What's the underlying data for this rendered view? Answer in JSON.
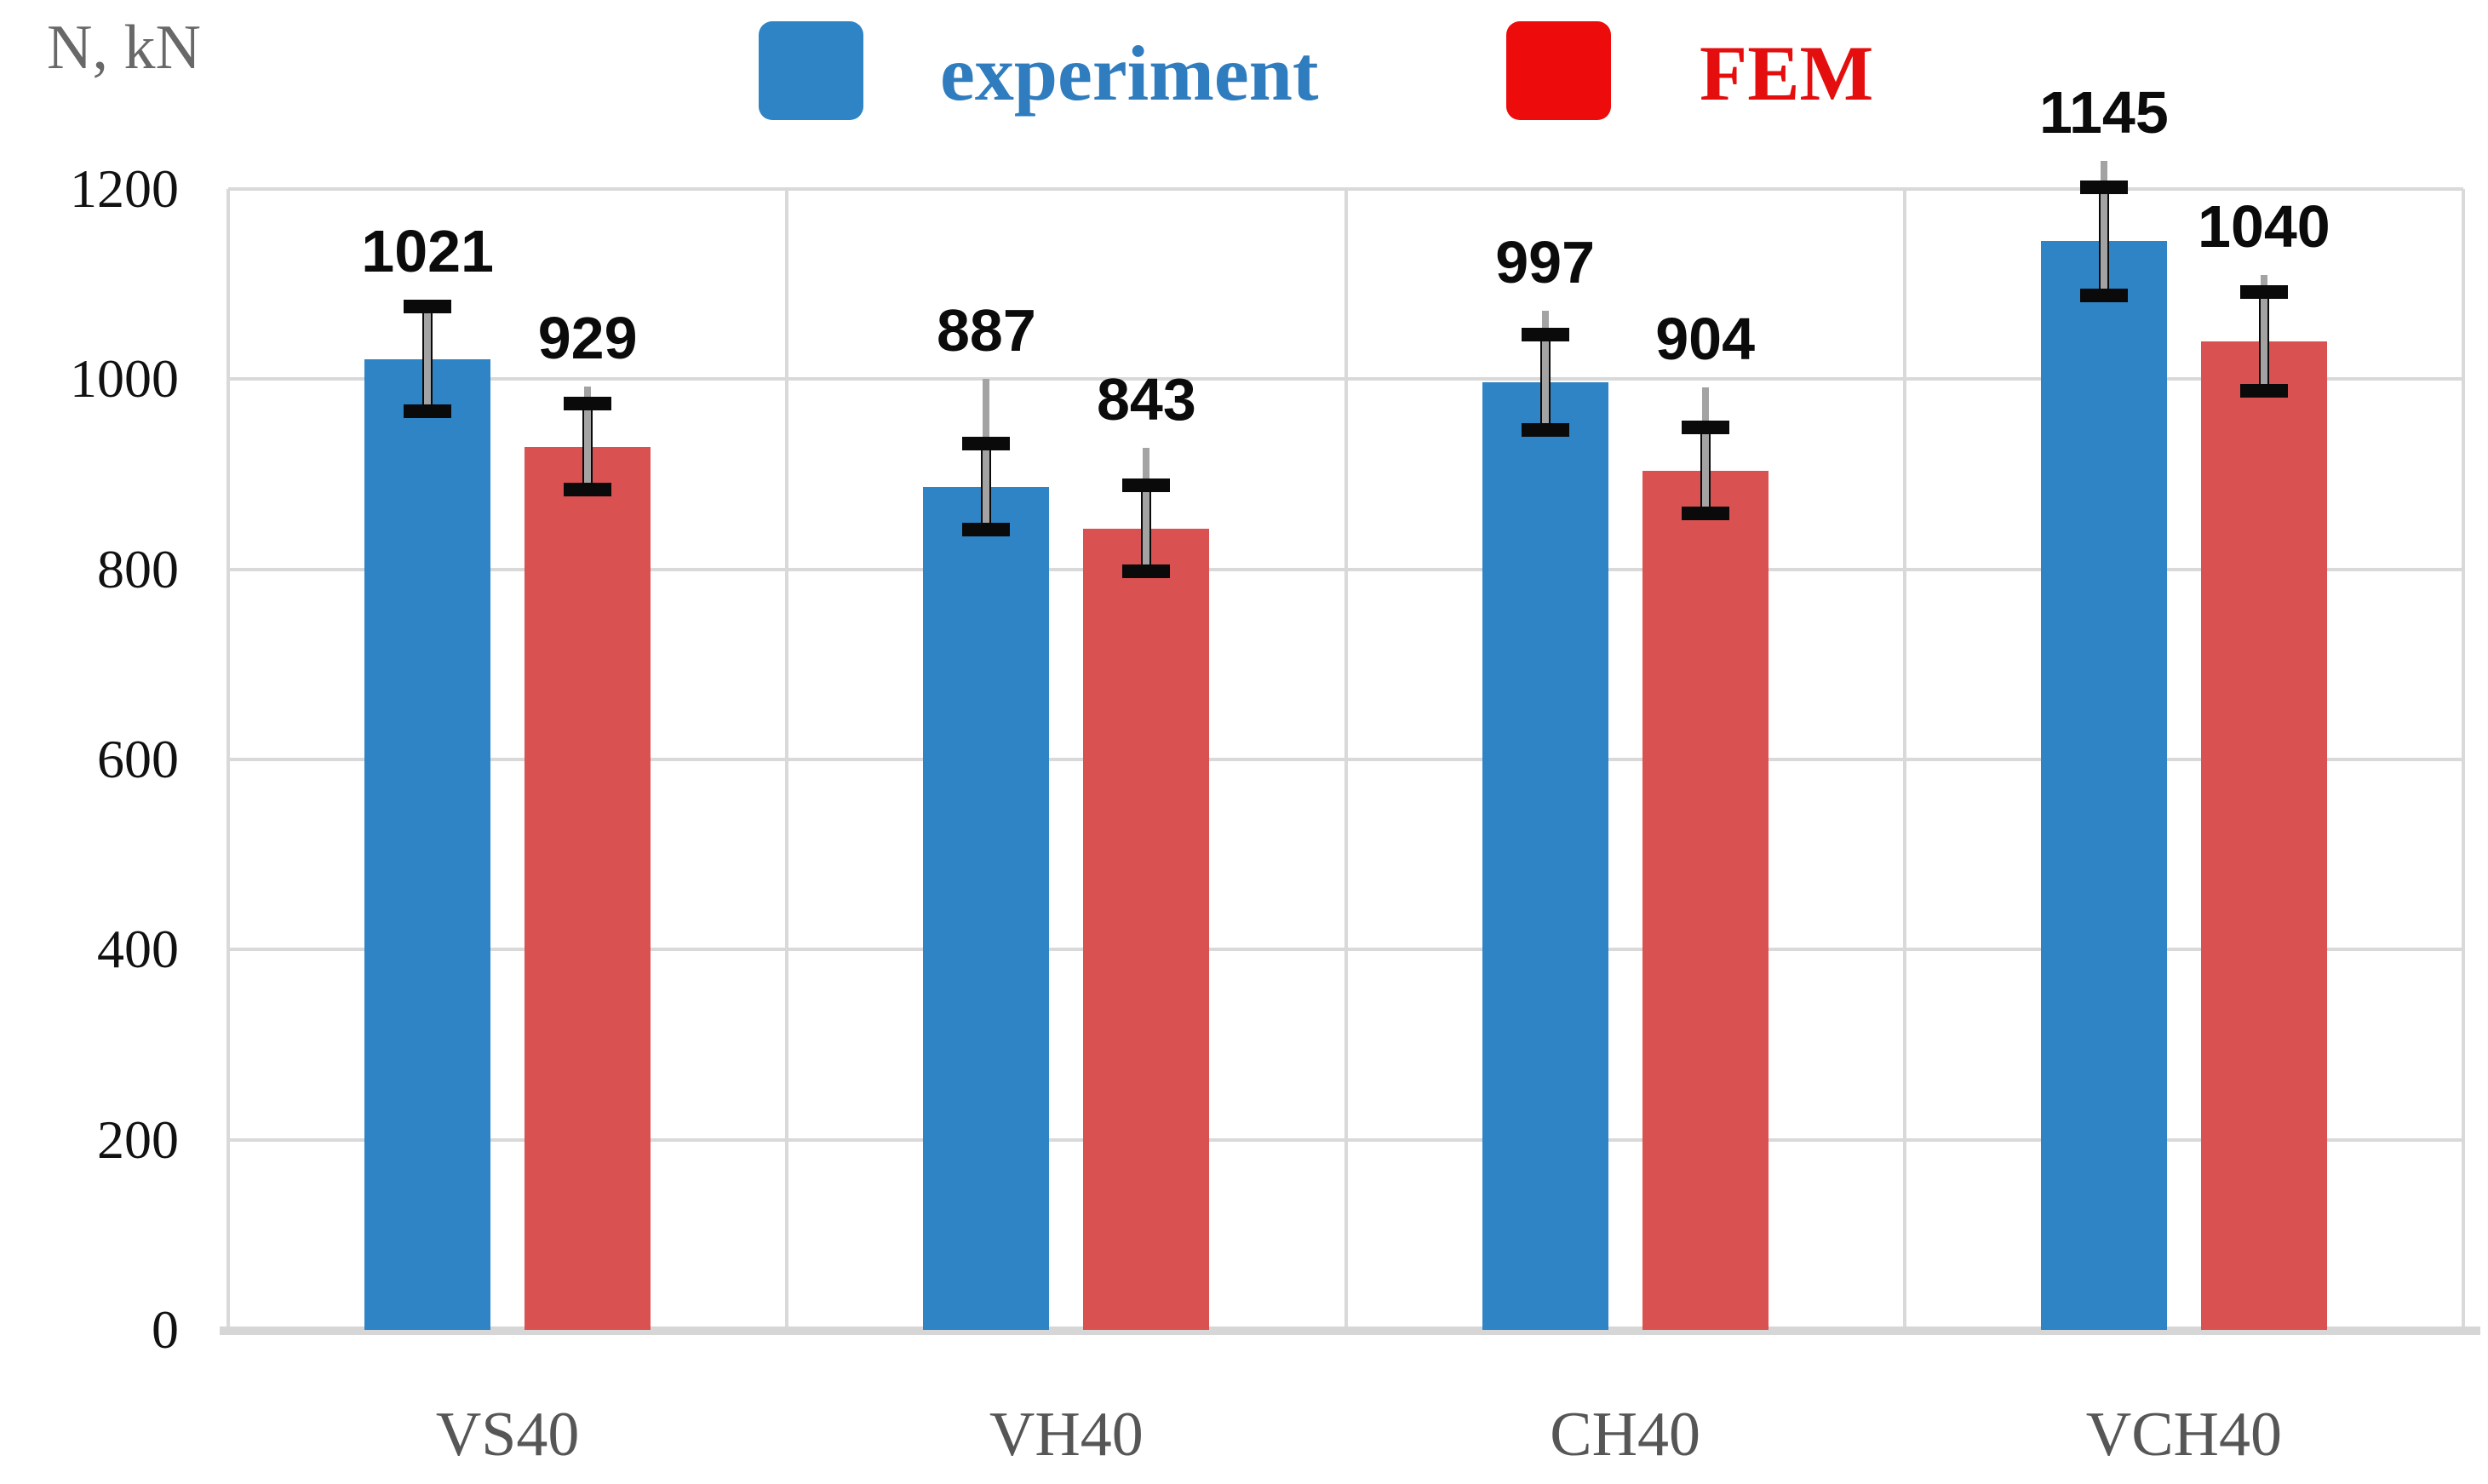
{
  "figure": {
    "y_axis_title": "N, kN"
  },
  "legend": {
    "items": [
      {
        "label": "experiment",
        "swatch_color": "#2e84c5",
        "text_color": "#2f7cbe"
      },
      {
        "label": "FEM",
        "swatch_color": "#ed0b0b",
        "text_color": "#e40e0e"
      }
    ]
  },
  "chart_data": {
    "type": "bar",
    "title": "",
    "xlabel": "",
    "ylabel": "N, kN",
    "categories": [
      "VS40",
      "VH40",
      "CH40",
      "VCH40"
    ],
    "series": [
      {
        "name": "experiment",
        "color": "#2e84c5",
        "values": [
          1021,
          887,
          997,
          1145
        ],
        "data_labels": [
          "1021",
          "887",
          "997",
          "1145"
        ],
        "error_plus_minus": [
          55,
          45,
          50,
          57
        ],
        "whisker_above_extra": [
          8,
          68,
          25,
          28
        ]
      },
      {
        "name": "FEM",
        "color": "#d95151",
        "values": [
          929,
          843,
          904,
          1040
        ],
        "data_labels": [
          "929",
          "843",
          "904",
          "1040"
        ],
        "error_plus_minus": [
          45,
          45,
          45,
          52
        ],
        "whisker_above_extra": [
          18,
          40,
          42,
          18
        ]
      }
    ],
    "y_ticks": [
      0,
      200,
      400,
      600,
      800,
      1000,
      1200
    ],
    "ylim": [
      0,
      1200
    ],
    "grid": true,
    "legend_position": "top",
    "error_bar_color": "#0a0a0a",
    "error_whisker_color": "#a3a3a3"
  },
  "colors": {
    "gridline": "#d9d9d9",
    "axis_baseline": "#d6d6d6",
    "tick_text": "#111111",
    "category_text": "#565656",
    "axis_title_text": "#686868",
    "value_label_text": "#0b0b0b"
  }
}
